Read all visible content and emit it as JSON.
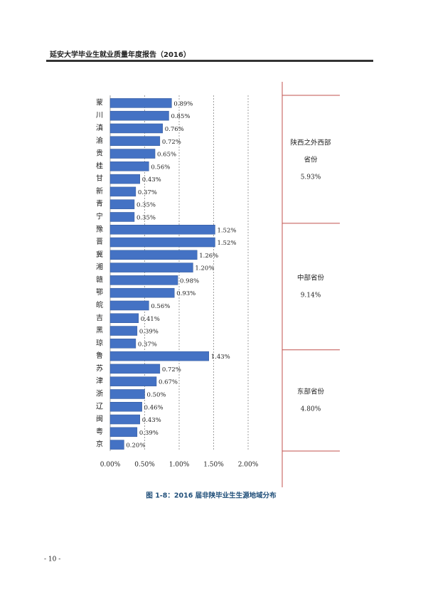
{
  "header": {
    "title": "延安大学毕业生就业质量年度报告（2016）"
  },
  "chart_data": {
    "type": "hbar",
    "categories": [
      "蒙",
      "川",
      "滇",
      "渝",
      "贵",
      "桂",
      "甘",
      "新",
      "青",
      "宁",
      "豫",
      "晋",
      "冀",
      "湘",
      "赣",
      "鄂",
      "皖",
      "吉",
      "黑",
      "琼",
      "鲁",
      "苏",
      "津",
      "浙",
      "辽",
      "闽",
      "粤",
      "京"
    ],
    "values": [
      0.89,
      0.85,
      0.76,
      0.72,
      0.65,
      0.56,
      0.43,
      0.37,
      0.35,
      0.35,
      1.52,
      1.52,
      1.26,
      1.2,
      0.98,
      0.93,
      0.56,
      0.41,
      0.39,
      0.37,
      1.43,
      0.72,
      0.67,
      0.5,
      0.46,
      0.43,
      0.39,
      0.2
    ],
    "value_labels": [
      "0.89%",
      "0.85%",
      "0.76%",
      "0.72%",
      "0.65%",
      "0.56%",
      "0.43%",
      "0.37%",
      "0.35%",
      "0.35%",
      "1.52%",
      "1.52%",
      "1.26%",
      "1.20%",
      "0.98%",
      "0.93%",
      "0.56%",
      "0.41%",
      "0.39%",
      "0.37%",
      "1.43%",
      "0.72%",
      "0.67%",
      "0.50%",
      "0.46%",
      "0.43%",
      "0.39%",
      "0.20%"
    ],
    "color": "#4472c4",
    "xlim": [
      0,
      2
    ],
    "xticks": [
      {
        "value": 0,
        "label": "0.00%"
      },
      {
        "value": 0.5,
        "label": "0.50%"
      },
      {
        "value": 1,
        "label": "1.00%"
      },
      {
        "value": 1.5,
        "label": "1.50%"
      },
      {
        "value": 2,
        "label": "2.00%"
      }
    ],
    "grid": true,
    "groups": [
      {
        "lines": [
          "陕西之外西部",
          "省份"
        ],
        "value": 5.93,
        "value_label": "5.93%"
      },
      {
        "lines": [
          "中部省份"
        ],
        "value": 9.14,
        "value_label": "9.14%"
      },
      {
        "lines": [
          "东部省份"
        ],
        "value": 4.8,
        "value_label": "4.80%"
      }
    ]
  },
  "caption": "图 1-8：2016 届非陕毕业生生源地域分布",
  "page_number": "- 10 -"
}
